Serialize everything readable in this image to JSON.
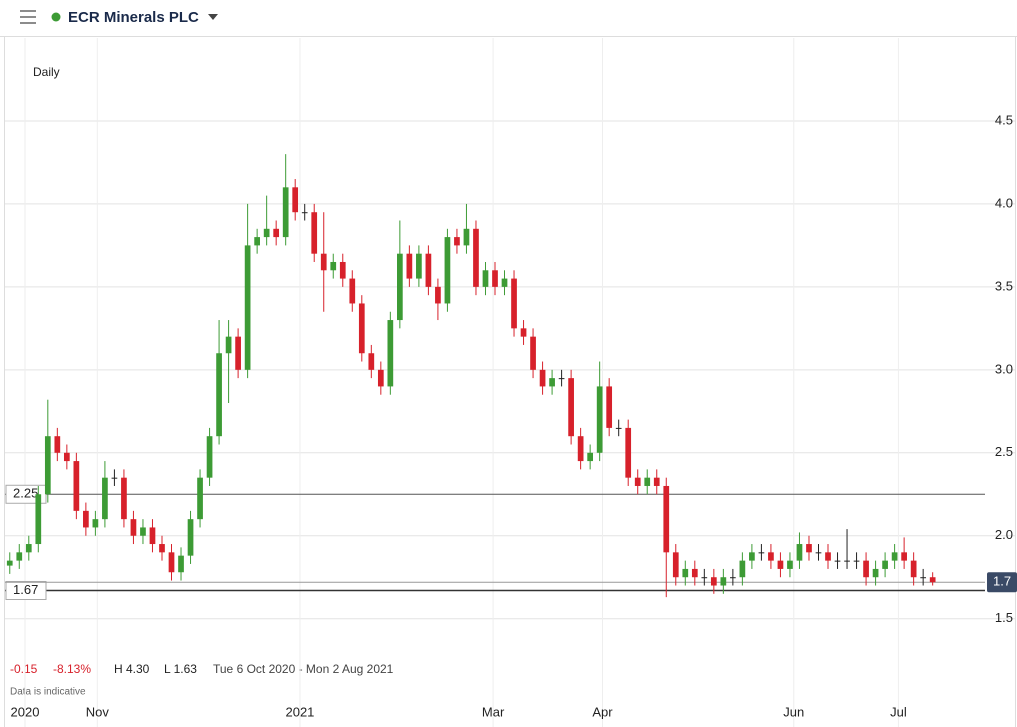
{
  "header": {
    "title": "ECR Minerals PLC"
  },
  "chart_data": {
    "type": "candlestick",
    "interval": "Daily",
    "up_color": "#3d9b35",
    "down_color": "#d7212b",
    "open": [
      1.82,
      1.85,
      1.9,
      1.95,
      2.25,
      2.6,
      2.5,
      2.45,
      2.15,
      2.05,
      2.1,
      2.35,
      2.35,
      2.1,
      2.0,
      2.05,
      1.95,
      1.9,
      1.78,
      1.88,
      2.1,
      2.35,
      2.6,
      3.1,
      3.2,
      3.0,
      3.75,
      3.8,
      3.85,
      3.8,
      4.1,
      3.95,
      3.95,
      3.7,
      3.6,
      3.65,
      3.55,
      3.4,
      3.1,
      3.0,
      2.9,
      3.3,
      3.7,
      3.55,
      3.7,
      3.5,
      3.4,
      3.8,
      3.75,
      3.85,
      3.5,
      3.6,
      3.5,
      3.55,
      3.25,
      3.2,
      3.0,
      2.9,
      2.95,
      2.95,
      2.6,
      2.45,
      2.5,
      2.9,
      2.65,
      2.65,
      2.35,
      2.3,
      2.35,
      2.3,
      1.9,
      1.75,
      1.8,
      1.75,
      1.75,
      1.7,
      1.75,
      1.75,
      1.85,
      1.9,
      1.9,
      1.85,
      1.8,
      1.85,
      1.95,
      1.9,
      1.9,
      1.85,
      1.85,
      1.85,
      1.85,
      1.75,
      1.8,
      1.85,
      1.9,
      1.85,
      1.75,
      1.75
    ],
    "high": [
      1.9,
      1.95,
      2.0,
      2.3,
      2.82,
      2.65,
      2.55,
      2.5,
      2.2,
      2.15,
      2.45,
      2.4,
      2.4,
      2.15,
      2.1,
      2.1,
      2.0,
      1.95,
      1.93,
      2.15,
      2.4,
      2.65,
      3.3,
      3.3,
      3.25,
      4.0,
      3.85,
      4.05,
      3.9,
      4.3,
      4.15,
      4.0,
      4.0,
      3.95,
      3.7,
      3.7,
      3.6,
      3.45,
      3.15,
      3.05,
      3.35,
      3.9,
      3.75,
      3.75,
      3.75,
      3.55,
      3.85,
      3.85,
      4.0,
      3.9,
      3.65,
      3.65,
      3.6,
      3.6,
      3.3,
      3.25,
      3.05,
      3.0,
      3.0,
      3.0,
      2.65,
      2.55,
      3.05,
      2.95,
      2.7,
      2.7,
      2.4,
      2.4,
      2.4,
      2.35,
      1.95,
      1.85,
      1.85,
      1.8,
      1.8,
      1.8,
      1.8,
      1.9,
      1.95,
      1.95,
      1.95,
      1.9,
      1.9,
      2.02,
      2.0,
      1.95,
      1.95,
      1.9,
      2.04,
      1.9,
      1.9,
      1.85,
      1.9,
      1.95,
      1.99,
      1.9,
      1.8,
      1.78
    ],
    "low": [
      1.77,
      1.8,
      1.85,
      1.9,
      2.2,
      2.45,
      2.4,
      2.1,
      2.0,
      2.0,
      2.05,
      2.3,
      2.05,
      1.95,
      1.95,
      1.9,
      1.85,
      1.73,
      1.73,
      1.83,
      2.05,
      2.3,
      2.55,
      2.8,
      2.95,
      2.95,
      3.7,
      3.75,
      3.75,
      3.75,
      3.9,
      3.9,
      3.65,
      3.35,
      3.55,
      3.5,
      3.35,
      3.05,
      2.95,
      2.85,
      2.85,
      3.25,
      3.5,
      3.5,
      3.45,
      3.3,
      3.35,
      3.7,
      3.7,
      3.45,
      3.45,
      3.45,
      3.45,
      3.2,
      3.15,
      2.95,
      2.85,
      2.85,
      2.9,
      2.55,
      2.4,
      2.4,
      2.45,
      2.6,
      2.6,
      2.3,
      2.25,
      2.25,
      2.25,
      1.63,
      1.7,
      1.7,
      1.7,
      1.7,
      1.65,
      1.65,
      1.7,
      1.7,
      1.8,
      1.85,
      1.8,
      1.75,
      1.75,
      1.8,
      1.85,
      1.85,
      1.8,
      1.8,
      1.8,
      1.8,
      1.7,
      1.7,
      1.75,
      1.8,
      1.8,
      1.7,
      1.7,
      1.7
    ],
    "close": [
      1.85,
      1.9,
      1.95,
      2.25,
      2.6,
      2.5,
      2.45,
      2.15,
      2.05,
      2.1,
      2.35,
      2.35,
      2.1,
      2.0,
      2.05,
      1.95,
      1.9,
      1.78,
      1.88,
      2.1,
      2.35,
      2.6,
      3.1,
      3.2,
      3.0,
      3.75,
      3.8,
      3.85,
      3.8,
      4.1,
      3.95,
      3.95,
      3.7,
      3.6,
      3.65,
      3.55,
      3.4,
      3.1,
      3.0,
      2.9,
      3.3,
      3.7,
      3.55,
      3.7,
      3.5,
      3.4,
      3.8,
      3.75,
      3.85,
      3.5,
      3.6,
      3.5,
      3.55,
      3.25,
      3.2,
      3.0,
      2.9,
      2.95,
      2.95,
      2.6,
      2.45,
      2.5,
      2.9,
      2.65,
      2.65,
      2.35,
      2.3,
      2.35,
      2.3,
      1.9,
      1.75,
      1.8,
      1.75,
      1.75,
      1.7,
      1.75,
      1.75,
      1.85,
      1.9,
      1.9,
      1.85,
      1.8,
      1.85,
      1.95,
      1.9,
      1.9,
      1.85,
      1.85,
      1.85,
      1.85,
      1.75,
      1.8,
      1.85,
      1.9,
      1.85,
      1.75,
      1.75,
      1.72
    ],
    "xlim": [
      -0.5,
      102.5
    ],
    "xticks": [
      {
        "value": 1.6,
        "label": "2020"
      },
      {
        "value": 9.2,
        "label": "Nov"
      },
      {
        "value": 30.5,
        "label": "2021"
      },
      {
        "value": 50.8,
        "label": "Mar"
      },
      {
        "value": 62.3,
        "label": "Apr"
      },
      {
        "value": 82.4,
        "label": "Jun"
      },
      {
        "value": 93.4,
        "label": "Jul"
      }
    ],
    "ylim": [
      1.01,
      5.0
    ],
    "yticks": [
      1.5,
      {
        "value": 2,
        "label": "2.0"
      },
      2.5,
      {
        "value": 3,
        "label": "3.0"
      },
      3.5,
      {
        "value": 4,
        "label": "4.0"
      },
      4.5
    ],
    "grid": true,
    "levels": [
      {
        "value": 2.25,
        "label": "2.25"
      },
      {
        "value": 1.67,
        "label": "1.67"
      }
    ],
    "last_price": {
      "value": 1.72,
      "label": "1.7"
    },
    "stats": {
      "change": "-0.15",
      "change_pct": "-8.13%",
      "high": "H 4.30",
      "low": "L 1.63",
      "range": "Tue 6 Oct 2020 - Mon 2 Aug 2021"
    },
    "note": "Data is indicative"
  }
}
